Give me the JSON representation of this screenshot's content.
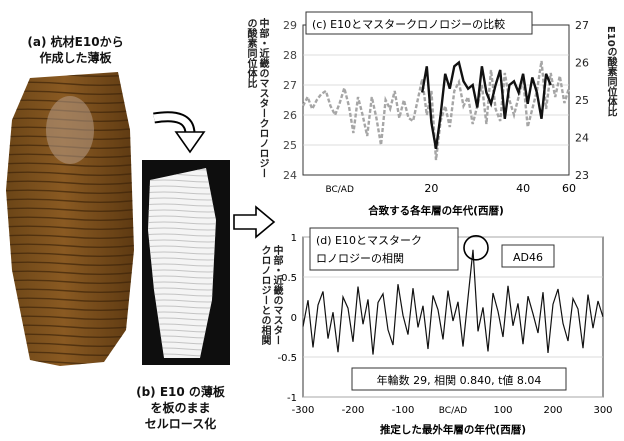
{
  "panel_a": {
    "caption_line1": "(a) 杭材E10から",
    "caption_line2": "作成した薄板"
  },
  "panel_b": {
    "caption_line1": "(b) E10 の薄板",
    "caption_line2": "を板のまま",
    "caption_line3": "セルロース化"
  },
  "chart_data": [
    {
      "type": "line",
      "title": "(c) E10とマスタークロノロジーの比較",
      "xlabel": "合致する各年層の年代(西暦)",
      "x_tick_labels": [
        "BC/AD",
        "20",
        "40",
        "60"
      ],
      "ylabel_left_line1": "中部・近畿のマスタークロノロジー",
      "ylabel_left_line2": "の酸素同位体比",
      "ylabel_right": "E10の酸素同位体比",
      "ylim_left": [
        24,
        29
      ],
      "ylim_right": [
        23,
        27
      ],
      "yticks_left": [
        "24",
        "25",
        "26",
        "27",
        "28",
        "29"
      ],
      "yticks_right": [
        "23",
        "24",
        "25",
        "26",
        "27"
      ],
      "xlim": [
        -8,
        50
      ],
      "colors": {
        "master": "#a6a6a6",
        "e10": "#111111"
      },
      "series": [
        {
          "axis": "left",
          "style": "dashed-gray",
          "x": [
            -8,
            -7,
            -6,
            -5,
            -4,
            -3,
            -2,
            -1,
            0,
            1,
            2,
            3,
            4,
            5,
            6,
            7,
            8,
            9,
            10,
            11,
            12,
            13,
            14,
            15,
            16,
            17,
            18,
            19,
            20,
            21,
            22,
            23,
            24,
            25,
            26,
            27,
            28,
            29,
            30,
            31,
            32,
            33,
            34,
            35,
            36,
            37,
            38,
            39,
            40,
            41,
            42,
            43,
            44,
            45,
            46,
            47,
            48,
            49,
            50
          ],
          "values": [
            26.3,
            26.6,
            26.2,
            26.5,
            26.7,
            26.8,
            26.3,
            26.0,
            26.4,
            26.9,
            26.3,
            25.4,
            26.6,
            26.0,
            25.3,
            26.6,
            25.9,
            25.0,
            26.5,
            26.2,
            26.8,
            25.9,
            26.5,
            25.9,
            25.8,
            26.5,
            27.2,
            26.0,
            26.8,
            24.5,
            25.8,
            26.3,
            25.6,
            26.8,
            27.1,
            26.3,
            26.6,
            25.7,
            26.3,
            27.0,
            25.7,
            27.5,
            26.2,
            25.8,
            27.4,
            26.5,
            26.0,
            26.6,
            27.2,
            25.6,
            26.2,
            26.8,
            27.8,
            26.2,
            27.4,
            26.6,
            27.3,
            26.4,
            26.9
          ]
        },
        {
          "axis": "right",
          "style": "solid-black",
          "x": [
            18,
            19,
            20,
            21,
            22,
            23,
            24,
            25,
            26,
            27,
            28,
            29,
            30,
            31,
            32,
            33,
            34,
            35,
            36,
            37,
            38,
            39,
            40,
            41,
            42,
            43,
            44,
            45,
            46
          ],
          "values": [
            25.2,
            25.9,
            24.4,
            23.7,
            24.6,
            25.7,
            25.3,
            25.9,
            26.0,
            25.5,
            25.3,
            25.4,
            24.8,
            25.9,
            25.2,
            24.9,
            25.4,
            25.8,
            24.5,
            25.4,
            25.5,
            25.2,
            25.7,
            24.9,
            25.6,
            25.2,
            24.5,
            25.7,
            25.4
          ]
        }
      ]
    },
    {
      "type": "line",
      "title": "(d) E10とマスタークロノロジーの相関",
      "xlabel": "推定した最外年層の年代(西暦)",
      "ylabel_line1": "中部・近畿のマスター",
      "ylabel_line2": "クロノロジーとの相関",
      "ylim": [
        -1,
        1
      ],
      "yticks": [
        "-1",
        "-0.5",
        "0",
        "0.5",
        "1"
      ],
      "xlim": [
        -300,
        300
      ],
      "x_tick_labels": [
        "-300",
        "-200",
        "-100",
        "BC/AD",
        "100",
        "200",
        "300"
      ],
      "peak": {
        "x": 46,
        "value": 0.84,
        "label": "AD46"
      },
      "stats_text": "年輪数 29, 相関 0.840, t値 8.04",
      "colors": {
        "line": "#111111"
      },
      "series": [
        {
          "x_start": -300,
          "x_step": 10,
          "values": [
            -0.12,
            0.21,
            -0.38,
            0.15,
            0.32,
            -0.27,
            0.06,
            -0.44,
            0.25,
            0.11,
            -0.31,
            0.38,
            -0.09,
            0.22,
            -0.47,
            0.18,
            0.29,
            -0.16,
            -0.35,
            0.41,
            0.02,
            -0.22,
            0.36,
            -0.13,
            0.14,
            -0.4,
            0.27,
            0.09,
            -0.28,
            0.33,
            -0.05,
            0.19,
            -0.37,
            0.24,
            0.84,
            -0.18,
            0.12,
            -0.43,
            0.3,
            0.07,
            -0.25,
            0.39,
            -0.11,
            0.17,
            -0.34,
            0.26,
            0.04,
            -0.2,
            0.31,
            -0.45,
            0.16,
            0.35,
            -0.08,
            -0.3,
            0.23,
            0.1,
            -0.39,
            0.28,
            -0.14,
            0.2,
            0.0
          ]
        }
      ]
    }
  ]
}
